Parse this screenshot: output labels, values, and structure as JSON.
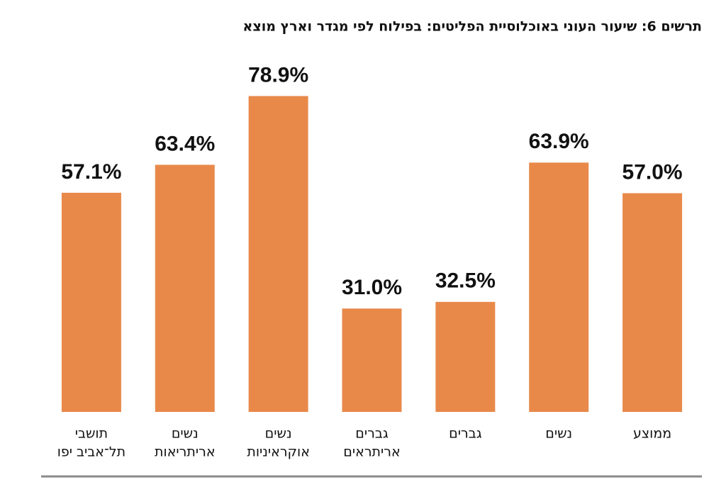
{
  "chart_data": {
    "type": "bar",
    "title": "תרשים 6: שיעור העוני באוכלוסיית הפליטים: בפילוח לפי מגדר וארץ מוצא",
    "categories": [
      [
        "ממוצע"
      ],
      [
        "נשים"
      ],
      [
        "גברים"
      ],
      [
        "גברים",
        "אריתראים"
      ],
      [
        "נשים",
        "אוקראיניות"
      ],
      [
        "נשים",
        "אריתריאות"
      ],
      [
        "תושבי",
        "תל־אביב יפו"
      ]
    ],
    "values": [
      57.0,
      63.9,
      32.5,
      31.0,
      78.9,
      63.4,
      57.1
    ],
    "value_labels": [
      "57.0%",
      "63.9%",
      "32.5%",
      "31.0%",
      "78.9%",
      "63.4%",
      "57.1%"
    ],
    "color": "#e8894a",
    "ylim": [
      7.7,
      90
    ],
    "direction": "rtl"
  }
}
